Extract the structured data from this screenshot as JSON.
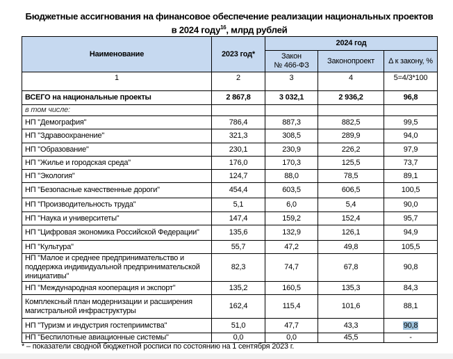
{
  "title": {
    "line1": "Бюджетные ассигнования на финансовое обеспечение реализации национальных проектов",
    "line2_pre": "в 2024 году",
    "footnote_ref": "16",
    "line2_post": ", млрд рублей"
  },
  "headers": {
    "name": "Наименование",
    "y2023": "2023 год*",
    "y2024": "2024 год",
    "law": "Закон",
    "law2": "№ 466-ФЗ",
    "draft": "Законопроект",
    "delta": "Δ к закону, %"
  },
  "col_numbers": [
    "1",
    "2",
    "3",
    "4",
    "5=4/3*100"
  ],
  "total": {
    "name": "ВСЕГО на национальные проекты",
    "v2023": "2 867,8",
    "law": "3 032,1",
    "draft": "2 936,2",
    "delta": "96,8"
  },
  "including": "в том числе:",
  "rows": [
    {
      "name": "НП \"Демография\"",
      "v2023": "786,4",
      "law": "887,3",
      "draft": "882,5",
      "delta": "99,5"
    },
    {
      "name": "НП \"Здравоохранение\"",
      "v2023": "321,3",
      "law": "308,5",
      "draft": "289,9",
      "delta": "94,0"
    },
    {
      "name": "НП \"Образование\"",
      "v2023": "230,1",
      "law": "230,9",
      "draft": "226,2",
      "delta": "97,9"
    },
    {
      "name": "НП \"Жилье и городская среда\"",
      "v2023": "176,0",
      "law": "170,3",
      "draft": "125,5",
      "delta": "73,7"
    },
    {
      "name": "НП \"Экология\"",
      "v2023": "124,7",
      "law": "88,0",
      "draft": "78,5",
      "delta": "89,1"
    },
    {
      "name": "НП \"Безопасные качественные дороги\"",
      "v2023": "454,4",
      "law": "603,5",
      "draft": "606,5",
      "delta": "100,5"
    },
    {
      "name": "НП \"Производительность труда\"",
      "v2023": "5,1",
      "law": "6,0",
      "draft": "5,4",
      "delta": "90,0"
    },
    {
      "name": "НП \"Наука и университеты\"",
      "v2023": "147,4",
      "law": "159,2",
      "draft": "152,4",
      "delta": "95,7"
    },
    {
      "name": "НП \"Цифровая экономика Российской Федерации\"",
      "v2023": "135,6",
      "law": "132,9",
      "draft": "126,1",
      "delta": "94,9"
    },
    {
      "name": "НП \"Культура\"",
      "v2023": "55,7",
      "law": "47,2",
      "draft": "49,8",
      "delta": "105,5"
    },
    {
      "name": "НП \"Малое и среднее предпринимательство и поддержка индивидуальной предпринимательской инициативы\"",
      "v2023": "82,3",
      "law": "74,7",
      "draft": "67,8",
      "delta": "90,8"
    },
    {
      "name": "НП \"Международная кооперация и экспорт\"",
      "v2023": "135,2",
      "law": "160,5",
      "draft": "135,3",
      "delta": "84,3"
    },
    {
      "name": "Комплексный план модернизации и расширения магистральной инфраструктуры",
      "v2023": "162,4",
      "law": "115,4",
      "draft": "101,6",
      "delta": "88,1"
    },
    {
      "name": "НП \"Туризм и индустрия гостеприимства\"",
      "v2023": "51,0",
      "law": "47,7",
      "draft": "43,3",
      "delta": "90,8",
      "highlight": true
    },
    {
      "name": "НП \"Беспилотные авиационные системы\"",
      "v2023": "0,0",
      "law": "0,0",
      "draft": "45,5",
      "delta": "-"
    }
  ],
  "footnote": "* – показатели сводной бюджетной росписи по состоянию на 1 сентября 2023 г.",
  "colors": {
    "header_bg": "#c6d9f0",
    "highlight": "#9fc3dd"
  }
}
